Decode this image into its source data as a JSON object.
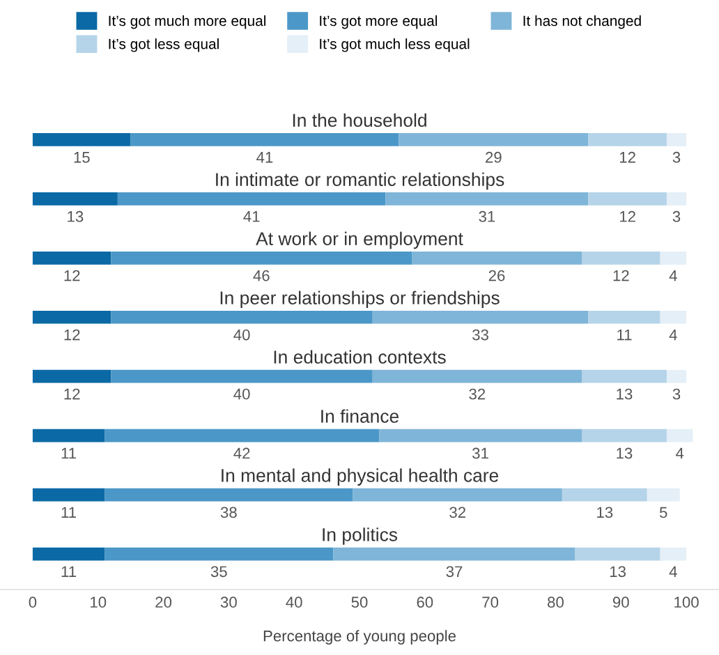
{
  "chart_data": {
    "type": "bar",
    "orientation": "horizontal",
    "stacked": true,
    "categories": [
      "In the household",
      "In intimate or romantic relationships",
      "At work or in employment",
      "In peer relationships or friendships",
      "In education contexts",
      "In finance",
      "In mental and physical health care",
      "In politics"
    ],
    "series": [
      {
        "name": "It’s got much more equal",
        "color": "#0b6aa6",
        "values": [
          15,
          13,
          12,
          12,
          12,
          11,
          11,
          11
        ]
      },
      {
        "name": "It’s got more equal",
        "color": "#4b98c8",
        "values": [
          41,
          41,
          46,
          40,
          40,
          42,
          38,
          35
        ]
      },
      {
        "name": "It has not changed",
        "color": "#7fb5d8",
        "values": [
          29,
          31,
          26,
          33,
          32,
          31,
          32,
          37
        ]
      },
      {
        "name": "It’s got less equal",
        "color": "#b5d4e9",
        "values": [
          12,
          12,
          12,
          11,
          13,
          13,
          13,
          13
        ]
      },
      {
        "name": "It’s got much less equal",
        "color": "#e4eff7",
        "values": [
          3,
          3,
          4,
          4,
          3,
          4,
          5,
          4
        ]
      }
    ],
    "data_labels": true,
    "xlim": [
      -5,
      105
    ],
    "xticks": [
      0,
      10,
      20,
      30,
      40,
      50,
      60,
      70,
      80,
      90,
      100
    ],
    "xlabel": "Percentage of young people",
    "grid": false,
    "legend": "top",
    "tick_labels": "x"
  }
}
